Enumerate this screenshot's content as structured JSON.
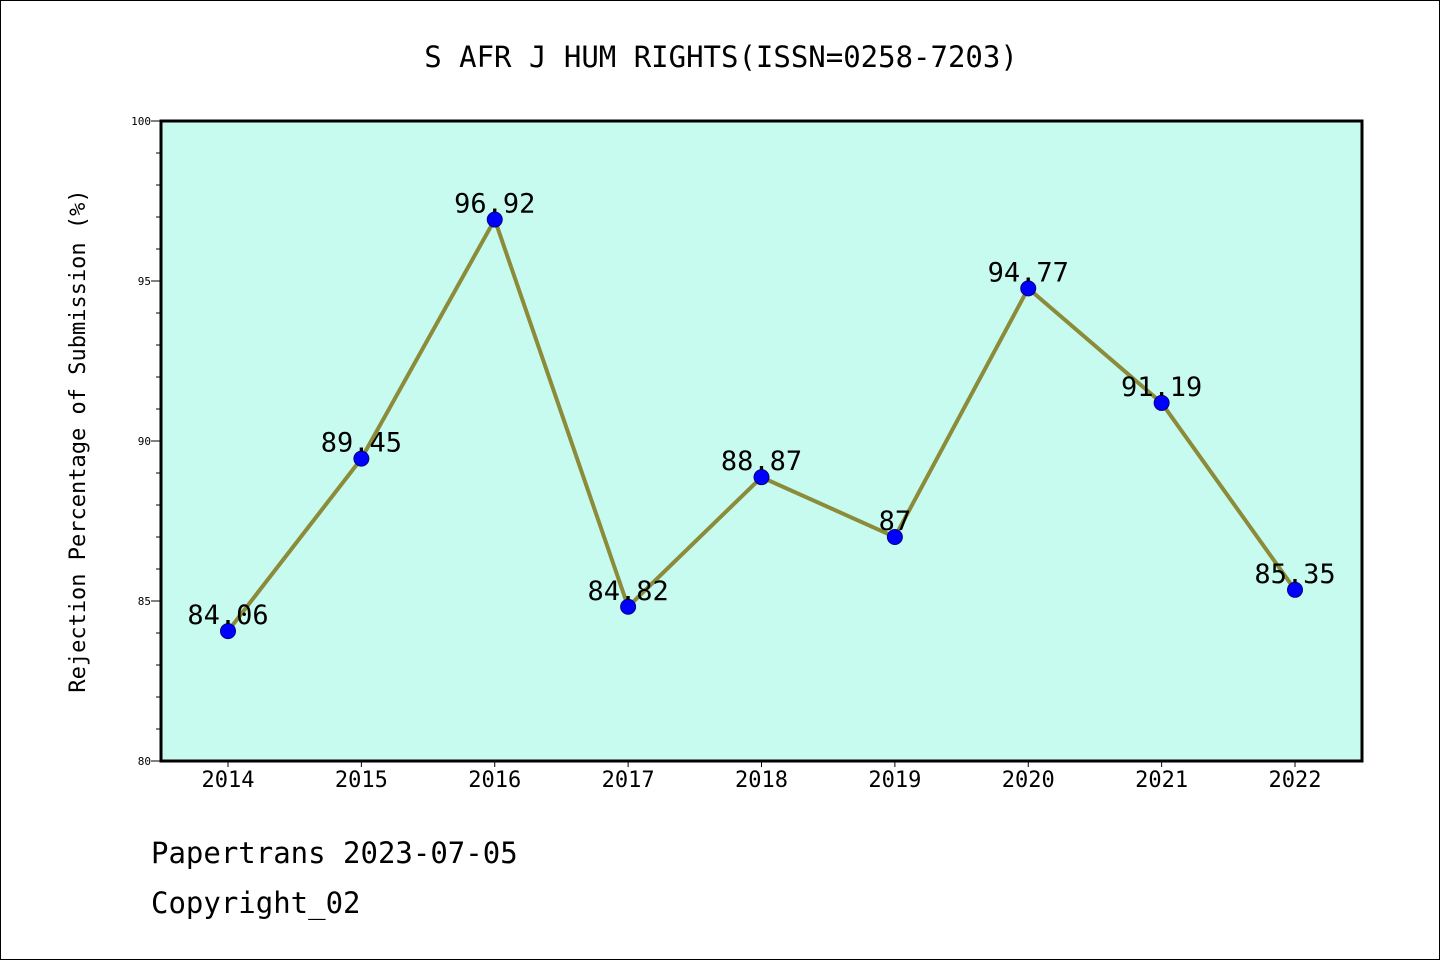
{
  "chart_data": {
    "type": "line",
    "title": "S AFR J HUM RIGHTS(ISSN=0258-7203)",
    "xlabel": "",
    "ylabel": "Rejection Percentage of Submission (%)",
    "categories": [
      "2014",
      "2015",
      "2016",
      "2017",
      "2018",
      "2019",
      "2020",
      "2021",
      "2022"
    ],
    "values": [
      84.06,
      89.45,
      96.92,
      84.82,
      88.87,
      87,
      94.77,
      91.19,
      85.35
    ],
    "data_labels": [
      "84.06",
      "89.45",
      "96.92",
      "84.82",
      "88.87",
      "87",
      "94.77",
      "91.19",
      "85.35"
    ],
    "ylim": [
      80,
      100
    ],
    "yticks": [
      80,
      85,
      90,
      95,
      100
    ],
    "ytick_labels": [
      "80",
      "85",
      "90",
      "95",
      "100"
    ],
    "grid": false,
    "colors": {
      "plot_background": "#c8fbef",
      "line": "#8b8b3a",
      "marker": "#0000ff"
    }
  },
  "footer": {
    "line1": "Papertrans 2023-07-05",
    "line2": "Copyright_02"
  }
}
